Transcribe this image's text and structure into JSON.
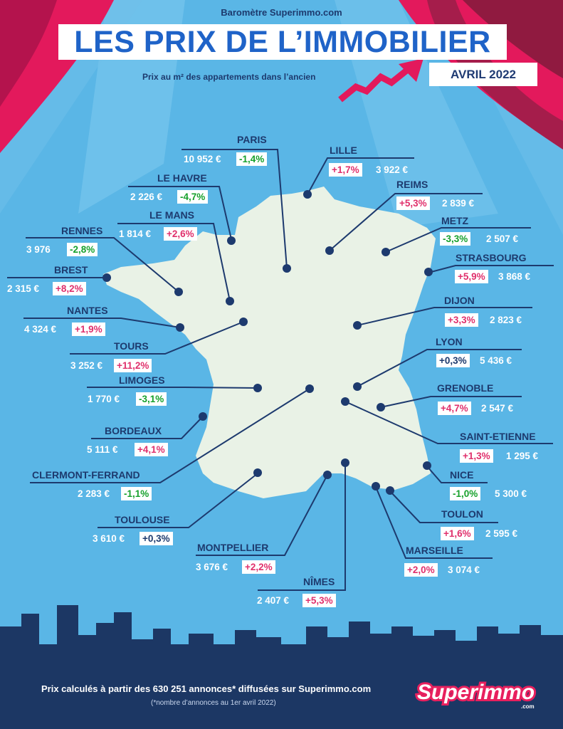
{
  "header": {
    "kicker": "Baromètre Superimmo.com",
    "title": "LES PRIX DE L’IMMOBILIER",
    "subtitle": "Prix au m² des appartements dans l’ancien",
    "date": "AVRIL 2022"
  },
  "colors": {
    "increase": "#e0306c",
    "decrease": "#17a12c",
    "neutral": "#1d3a6e",
    "map": "#e9f2e6",
    "curtain": "#e3195c",
    "skyline": "#1c3764"
  },
  "cities": [
    {
      "name": "PARIS",
      "price": "10 952 €",
      "change": "-1,4%",
      "trend": "down"
    },
    {
      "name": "LILLE",
      "price": "3 922 €",
      "change": "+1,7%",
      "trend": "up"
    },
    {
      "name": "LE HAVRE",
      "price": "2 226 €",
      "change": "-4,7%",
      "trend": "down"
    },
    {
      "name": "REIMS",
      "price": "2 839 €",
      "change": "+5,3%",
      "trend": "up"
    },
    {
      "name": "LE MANS",
      "price": "1 814 €",
      "change": "+2,6%",
      "trend": "up"
    },
    {
      "name": "METZ",
      "price": "2 507 €",
      "change": "-3,3%",
      "trend": "down"
    },
    {
      "name": "RENNES",
      "price": "3 976",
      "change": "-2,8%",
      "trend": "down"
    },
    {
      "name": "STRASBOURG",
      "price": "3 868 €",
      "change": "+5,9%",
      "trend": "up"
    },
    {
      "name": "BREST",
      "price": "2 315 €",
      "change": "+8,2%",
      "trend": "up"
    },
    {
      "name": "DIJON",
      "price": "2 823 €",
      "change": "+3,3%",
      "trend": "up"
    },
    {
      "name": "NANTES",
      "price": "4 324 €",
      "change": "+1,9%",
      "trend": "up"
    },
    {
      "name": "LYON",
      "price": "5 436 €",
      "change": "+0,3%",
      "trend": "neutral"
    },
    {
      "name": "TOURS",
      "price": "3 252 €",
      "change": "+11,2%",
      "trend": "up"
    },
    {
      "name": "LIMOGES",
      "price": "1 770 €",
      "change": "-3,1%",
      "trend": "down"
    },
    {
      "name": "GRENOBLE",
      "price": "2 547 €",
      "change": "+4,7%",
      "trend": "up"
    },
    {
      "name": "BORDEAUX",
      "price": "5 111 €",
      "change": "+4,1%",
      "trend": "up"
    },
    {
      "name": "SAINT-ETIENNE",
      "price": "1 295 €",
      "change": "+1,3%",
      "trend": "up"
    },
    {
      "name": "CLERMONT-FERRAND",
      "price": "2 283 €",
      "change": "-1,1%",
      "trend": "down"
    },
    {
      "name": "NICE",
      "price": "5 300 €",
      "change": "-1,0%",
      "trend": "down"
    },
    {
      "name": "TOULOUSE",
      "price": "3 610 €",
      "change": "+0,3%",
      "trend": "neutral"
    },
    {
      "name": "TOULON",
      "price": "2 595 €",
      "change": "+1,6%",
      "trend": "up"
    },
    {
      "name": "MONTPELLIER",
      "price": "3 676 €",
      "change": "+2,2%",
      "trend": "up"
    },
    {
      "name": "MARSEILLE",
      "price": "3 074 €",
      "change": "+2,0%",
      "trend": "up"
    },
    {
      "name": "NÎMES",
      "price": "2 407 €",
      "change": "+5,3%",
      "trend": "up"
    }
  ],
  "footer": {
    "text": "Prix calculés à partir des 630 251 annonces* diffusées sur Superimmo.com",
    "note": "(*nombre d’annonces au 1er avril 2022)"
  },
  "logo": {
    "name": "Superimmo",
    "domain": ".com"
  }
}
